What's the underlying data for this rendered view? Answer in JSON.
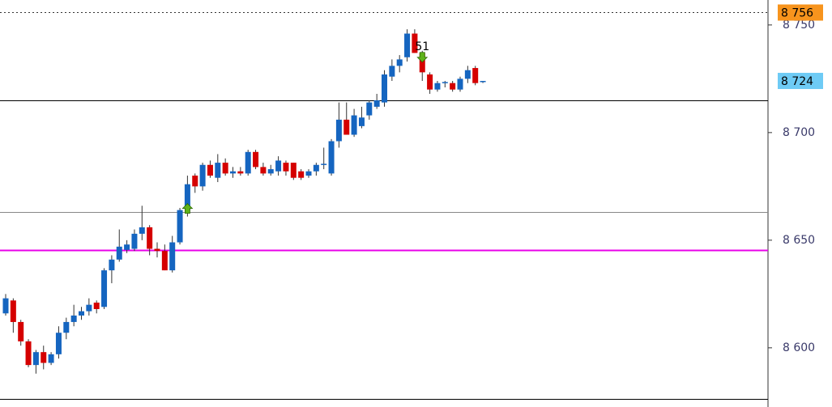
{
  "chart_data": {
    "type": "candlestick",
    "ylim": [
      8572.5,
      8761.6
    ],
    "yticks": [
      {
        "value": 8600,
        "label": "8 600"
      },
      {
        "value": 8650,
        "label": "8 650"
      },
      {
        "value": 8700,
        "label": "8 700"
      },
      {
        "value": 8750,
        "label": "8 750"
      }
    ],
    "up_color": "#1565c0",
    "down_color": "#d50000",
    "open": [
      8616,
      8622,
      8612,
      8603,
      8592,
      8598,
      8593,
      8597,
      8607,
      8612,
      8615,
      8617,
      8621,
      8619,
      8636,
      8641,
      8645.5,
      8646,
      8653,
      8656,
      8646,
      8645,
      8636,
      8649,
      8664,
      8680,
      8675,
      8685,
      8679,
      8686,
      8681,
      8682,
      8681,
      8691,
      8684,
      8681,
      8682,
      8686,
      8686,
      8682,
      8680,
      8682,
      8685,
      8681,
      8696,
      8706,
      8699,
      8703,
      8708,
      8712,
      8714,
      8726,
      8731,
      8735,
      8746,
      8737,
      8727,
      8720,
      8723,
      8723,
      8720,
      8725,
      8730,
      8723.5
    ],
    "high": [
      8625,
      8623,
      8613,
      8604,
      8599,
      8601,
      8598,
      8610,
      8614,
      8620,
      8619,
      8623,
      8622,
      8637,
      8643,
      8655,
      8650,
      8655,
      8666,
      8657,
      8649,
      8648,
      8652,
      8665,
      8680,
      8681,
      8686,
      8687,
      8690,
      8688,
      8684,
      8684,
      8692,
      8692,
      8686,
      8685,
      8689,
      8687,
      8686,
      8683,
      8683,
      8686,
      8693,
      8697,
      8714,
      8714,
      8711,
      8712,
      8715,
      8718,
      8729,
      8734,
      8736,
      8748,
      8748,
      8738,
      8728,
      8724,
      8724,
      8724,
      8726,
      8731,
      8731,
      8724
    ],
    "low": [
      8615,
      8607,
      8601,
      8591,
      8588,
      8590,
      8592,
      8595,
      8604,
      8610,
      8613,
      8615,
      8616,
      8618,
      8630,
      8640,
      8644,
      8645,
      8650,
      8643,
      8642,
      8636,
      8635,
      8648,
      8661,
      8672,
      8673,
      8679,
      8677,
      8680,
      8679,
      8680,
      8680,
      8683,
      8680,
      8680,
      8680,
      8680,
      8678,
      8678,
      8679,
      8680,
      8683,
      8680,
      8693,
      8699,
      8698,
      8702,
      8706,
      8711,
      8712,
      8724,
      8728,
      8733,
      8737,
      8724,
      8718,
      8719,
      8721,
      8719,
      8719,
      8723,
      8722,
      8723
    ],
    "close": [
      8623,
      8612,
      8603,
      8592,
      8598,
      8593,
      8597,
      8607,
      8612,
      8615,
      8617,
      8620,
      8618,
      8636,
      8641,
      8647,
      8648,
      8653,
      8656,
      8646,
      8645,
      8636,
      8649,
      8664,
      8676,
      8675,
      8685,
      8680,
      8686,
      8681,
      8682,
      8681,
      8691,
      8684,
      8681,
      8683,
      8687,
      8682,
      8679,
      8679,
      8682,
      8685,
      8685.5,
      8696,
      8706,
      8699,
      8708,
      8707,
      8714,
      8715,
      8727,
      8731,
      8734,
      8746,
      8737,
      8728,
      8720,
      8723,
      8723.5,
      8720,
      8725,
      8729,
      8723,
      8724
    ],
    "hlines": [
      {
        "value": 8756,
        "color": "#333333",
        "dash": true,
        "label": "8 756",
        "label_color": "#f7941d"
      },
      {
        "value": 8715,
        "color": "#000000",
        "dash": false
      },
      {
        "value": 8663.2,
        "color": "#888888",
        "dash": false
      },
      {
        "value": 8645.5,
        "color": "#e800e8",
        "dash": false
      },
      {
        "value": 8576.3,
        "color": "#000000",
        "dash": false
      }
    ],
    "markers": [
      {
        "value": 8724,
        "label": "8 724",
        "label_color": "#6ecbf5"
      }
    ],
    "annotations": [
      {
        "text": "51",
        "index": 55
      }
    ],
    "arrows": [
      {
        "index": 24,
        "direction": "up"
      },
      {
        "index": 55,
        "direction": "down"
      }
    ]
  }
}
